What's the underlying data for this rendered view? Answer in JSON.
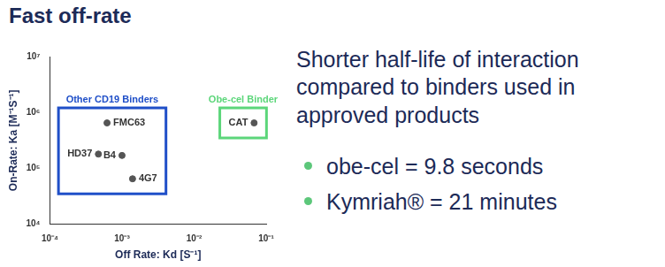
{
  "heading": "Fast off-rate",
  "statement": "Shorter half-life of interaction compared to binders used in approved products",
  "bullets": [
    "obe-cel = 9.8 seconds",
    "Kymriah® = 21 minutes"
  ],
  "chart_data": {
    "type": "scatter",
    "log": true,
    "grid": false,
    "x_label": "Off Rate: Kd [S⁻¹]",
    "y_label": "On-Rate: Ka [M⁻¹S⁻¹]",
    "point_labels": [
      "FMC63",
      "HD37",
      "B4",
      "4G7",
      "CAT"
    ],
    "x": [
      0.00062,
      0.00047,
      0.001,
      0.0014,
      0.068
    ],
    "values": [
      650000,
      180000,
      170000,
      65000,
      650000
    ],
    "color": "#555555",
    "xlim": [
      0.0001,
      0.1
    ],
    "xticks": [
      {
        "value": 0.0001,
        "label": "10⁻⁴"
      },
      {
        "value": 0.001,
        "label": "10⁻³"
      },
      {
        "value": 0.01,
        "label": "10⁻²"
      },
      {
        "value": 0.1,
        "label": "10⁻¹"
      }
    ],
    "ylim": [
      10000,
      10000000
    ],
    "yticks": [
      {
        "value": 10000,
        "label": "10⁴"
      },
      {
        "value": 100000,
        "label": "10⁵"
      },
      {
        "value": 1000000,
        "label": "10⁶"
      },
      {
        "value": 10000000,
        "label": "10⁷"
      }
    ],
    "groups": [
      {
        "text": "Other CD19 Binders",
        "color": "#1f4fc8",
        "members": [
          "FMC63",
          "HD37",
          "B4",
          "4G7"
        ]
      },
      {
        "text": "Obe-cel Binder",
        "color": "#5cd67a",
        "members": [
          "CAT"
        ]
      }
    ]
  }
}
